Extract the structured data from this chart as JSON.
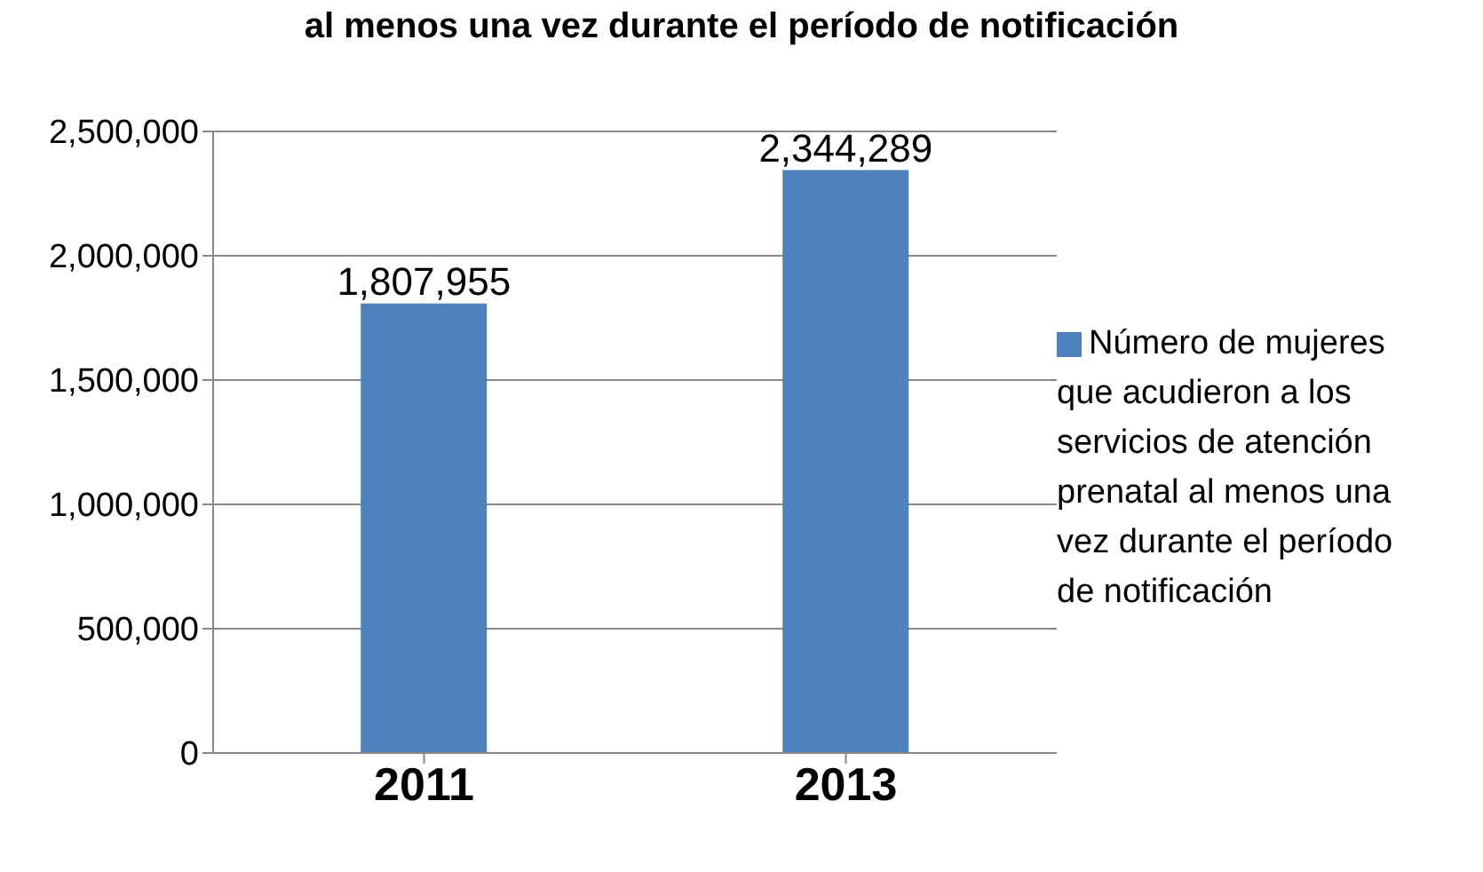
{
  "chart_data": {
    "type": "bar",
    "title": "al menos una vez durante el período de notificación",
    "categories": [
      "2011",
      "2013"
    ],
    "series": [
      {
        "name": "Número de mujeres que acudieron a los servicios de atención prenatal al menos una vez durante el período de notificación",
        "color": "#4f81bd",
        "values": [
          1807955,
          2344289
        ],
        "value_labels": [
          "1,807,955",
          "2,344,289"
        ]
      }
    ],
    "ylim": [
      0,
      2500000
    ],
    "yticks": [
      0,
      {
        "value": 500000,
        "label": "500,000"
      },
      {
        "value": 1000000,
        "label": "1,000,000"
      },
      {
        "value": 1500000,
        "label": "1,500,000"
      },
      {
        "value": 2000000,
        "label": "2,000,000"
      },
      {
        "value": 2500000,
        "label": "2,500,000"
      }
    ],
    "grid": "y",
    "legend": "right"
  }
}
